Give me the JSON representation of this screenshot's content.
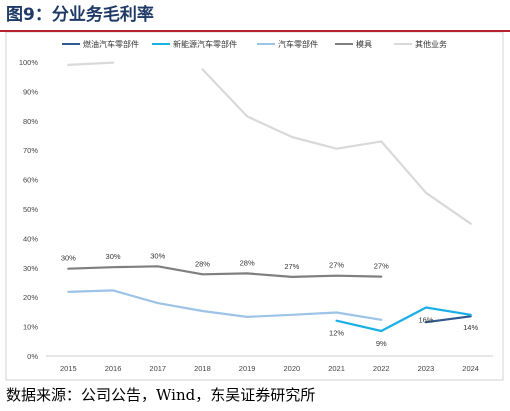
{
  "title": "图9：分业务毛利率",
  "source": "数据来源：公司公告，Wind，东吴证券研究所",
  "chart_data": {
    "type": "line",
    "categories": [
      "2015",
      "2016",
      "2017",
      "2018",
      "2019",
      "2020",
      "2021",
      "2022",
      "2023",
      "2024"
    ],
    "ylim": [
      0,
      100
    ],
    "yticks": [
      0,
      10,
      20,
      30,
      40,
      50,
      60,
      70,
      80,
      90,
      100
    ],
    "ytick_suffix": "%",
    "grid": false,
    "legend_position": "top",
    "series": [
      {
        "name": "燃油汽车零部件",
        "color": "#2e5a8f",
        "values": [
          null,
          null,
          null,
          null,
          null,
          null,
          null,
          null,
          11.5,
          13.5
        ]
      },
      {
        "name": "新能源汽车零部件",
        "color": "#1ab0e6",
        "values": [
          null,
          null,
          null,
          null,
          null,
          null,
          12,
          8.5,
          16.5,
          14
        ]
      },
      {
        "name": "汽车零部件",
        "color": "#9dc3e6",
        "values": [
          21.8,
          22.3,
          18,
          15.3,
          13.3,
          14,
          14.8,
          12.3,
          null,
          null
        ]
      },
      {
        "name": "模具",
        "color": "#7f7f7f",
        "values": [
          29.7,
          30.2,
          30.5,
          27.8,
          28.1,
          26.9,
          27.3,
          27,
          null,
          null
        ]
      },
      {
        "name": "其他业务",
        "color": "#d9d9d9",
        "values": [
          99,
          99.8,
          null,
          97.5,
          81.5,
          74.5,
          70.5,
          73,
          55.5,
          45
        ]
      }
    ],
    "annotations": [
      {
        "text": "30%",
        "category": "2015",
        "value": 29.7
      },
      {
        "text": "30%",
        "category": "2016",
        "value": 30.2
      },
      {
        "text": "30%",
        "category": "2017",
        "value": 30.5
      },
      {
        "text": "28%",
        "category": "2018",
        "value": 27.8
      },
      {
        "text": "28%",
        "category": "2019",
        "value": 28.1
      },
      {
        "text": "27%",
        "category": "2020",
        "value": 26.9
      },
      {
        "text": "27%",
        "category": "2021",
        "value": 27.3
      },
      {
        "text": "27%",
        "category": "2022",
        "value": 27
      },
      {
        "text": "12%",
        "category": "2021",
        "value": 12,
        "placement": "below"
      },
      {
        "text": "9%",
        "category": "2022",
        "value": 8.5,
        "placement": "below"
      },
      {
        "text": "16%",
        "category": "2023",
        "value": 16.5,
        "placement": "below"
      },
      {
        "text": "14%",
        "category": "2024",
        "value": 14,
        "placement": "below"
      }
    ]
  }
}
